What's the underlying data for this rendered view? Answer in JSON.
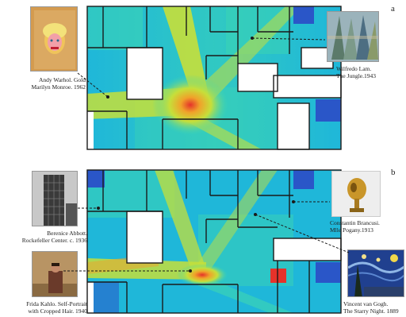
{
  "panels": {
    "a": {
      "letter": "a",
      "artworks": {
        "warhol": {
          "line1": "Andy Warhol. Gold",
          "line2": "Marilyn Monroe. 1962"
        },
        "lam": {
          "line1": "Wilfredo Lam.",
          "line2": "The Jungle.1943"
        }
      }
    },
    "b": {
      "letter": "b",
      "artworks": {
        "abbott": {
          "line1": "Berenice Abbott.",
          "line2": "Rockefeller Center. c. 1936"
        },
        "brancusi": {
          "line1": "Constantin Brancusi.",
          "line2": "Mlle Pogany.1913"
        },
        "kahlo": {
          "line1": "Frida Kahlo. Self-Portrait",
          "line2": "with Cropped Hair. 1940"
        },
        "vangogh": {
          "line1": "Vincent van Gogh.",
          "line2": "The Starry Night. 1889"
        }
      }
    }
  },
  "colors": {
    "low": "#2a56c8",
    "mid_low": "#1fb7d9",
    "mid": "#3fd7b0",
    "mid_high": "#c6df3a",
    "high": "#f0a22a",
    "peak": "#e5322a",
    "wall": "#1a1a1a"
  }
}
